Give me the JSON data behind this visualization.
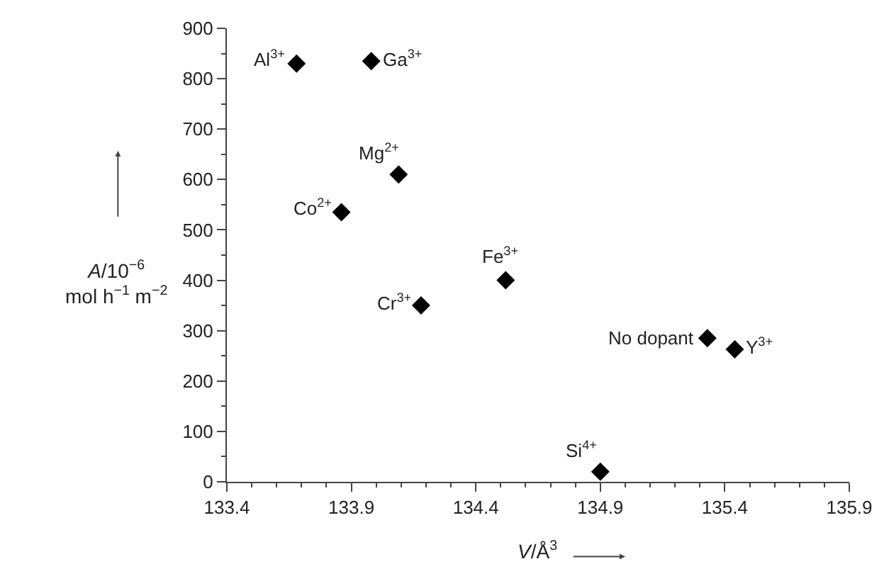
{
  "chart_data": {
    "type": "scatter",
    "xlabel": "V/Å$^{3}$",
    "ylabel": "A/10$^{−6}$ mol h$^{−1}$ m$^{−2}$",
    "x": [
      133.68,
      133.98,
      134.09,
      133.86,
      134.18,
      134.52,
      135.33,
      135.44,
      134.9
    ],
    "series": [
      {
        "color": "#000000",
        "values": [
          830,
          835,
          610,
          535,
          350,
          400,
          285,
          263,
          20
        ]
      }
    ],
    "marker": "diamond",
    "legend": false,
    "xlim": [
      133.4,
      135.9
    ],
    "xticks": [
      133.4,
      133.9,
      134.4,
      134.9,
      135.4,
      135.9
    ],
    "ylim": [
      0,
      900
    ],
    "yticks": [
      0,
      100,
      200,
      300,
      400,
      500,
      600,
      700,
      800,
      900
    ],
    "annotations": [
      {
        "text": "Al$^{3+}$",
        "x": 133.68,
        "y": 830
      },
      {
        "text": "Ga$^{3+}$",
        "x": 133.98,
        "y": 835
      },
      {
        "text": "Mg$^{2+}$",
        "x": 134.09,
        "y": 610
      },
      {
        "text": "Co$^{2+}$",
        "x": 133.86,
        "y": 535
      },
      {
        "text": "Cr$^{3+}$",
        "x": 134.18,
        "y": 350
      },
      {
        "text": "Fe$^{3+}$",
        "x": 134.52,
        "y": 400
      },
      {
        "text": "No dopant",
        "x": 135.33,
        "y": 285
      },
      {
        "text": "Y$^{3+}$",
        "x": 135.44,
        "y": 263
      },
      {
        "text": "Si$^{4+}$",
        "x": 134.9,
        "y": 20
      }
    ]
  }
}
